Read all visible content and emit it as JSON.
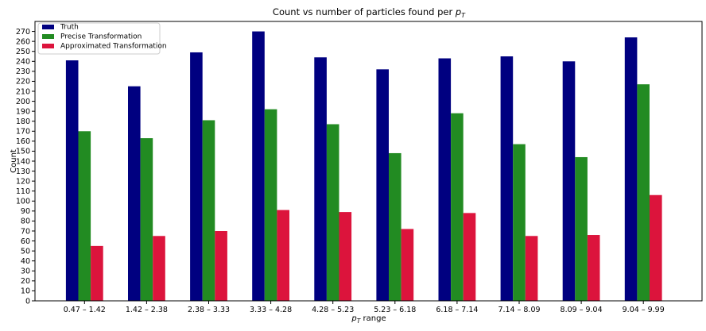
{
  "chart_data": {
    "type": "bar",
    "title": "Count vs number of particles found per p_T",
    "title_prefix": "Count vs number of particles found per ",
    "title_math_base": "p",
    "title_math_sub": "T",
    "xlabel_math_base": "p",
    "xlabel_math_sub": "T",
    "xlabel_suffix": " range",
    "ylabel": "Count",
    "ylim": [
      0,
      280
    ],
    "yticks": [
      0,
      10,
      20,
      30,
      40,
      50,
      60,
      70,
      80,
      90,
      100,
      110,
      120,
      130,
      140,
      150,
      160,
      170,
      180,
      190,
      200,
      210,
      220,
      230,
      240,
      250,
      260,
      270
    ],
    "grid": false,
    "legend_position": "top-left",
    "categories": [
      "0.47 – 1.42",
      "1.42 – 2.38",
      "2.38 – 3.33",
      "3.33 – 4.28",
      "4.28 – 5.23",
      "5.23 – 6.18",
      "6.18 – 7.14",
      "7.14 – 8.09",
      "8.09 – 9.04",
      "9.04 – 9.99"
    ],
    "series": [
      {
        "name": "Truth",
        "color": "#000080",
        "values": [
          241,
          215,
          249,
          270,
          244,
          232,
          243,
          245,
          240,
          264
        ]
      },
      {
        "name": "Precise Transformation",
        "color": "#228b22",
        "values": [
          170,
          163,
          181,
          192,
          177,
          148,
          188,
          157,
          144,
          217
        ]
      },
      {
        "name": "Approximated Transformation",
        "color": "#dc143c",
        "values": [
          55,
          65,
          70,
          91,
          89,
          72,
          88,
          65,
          66,
          106
        ]
      }
    ]
  }
}
